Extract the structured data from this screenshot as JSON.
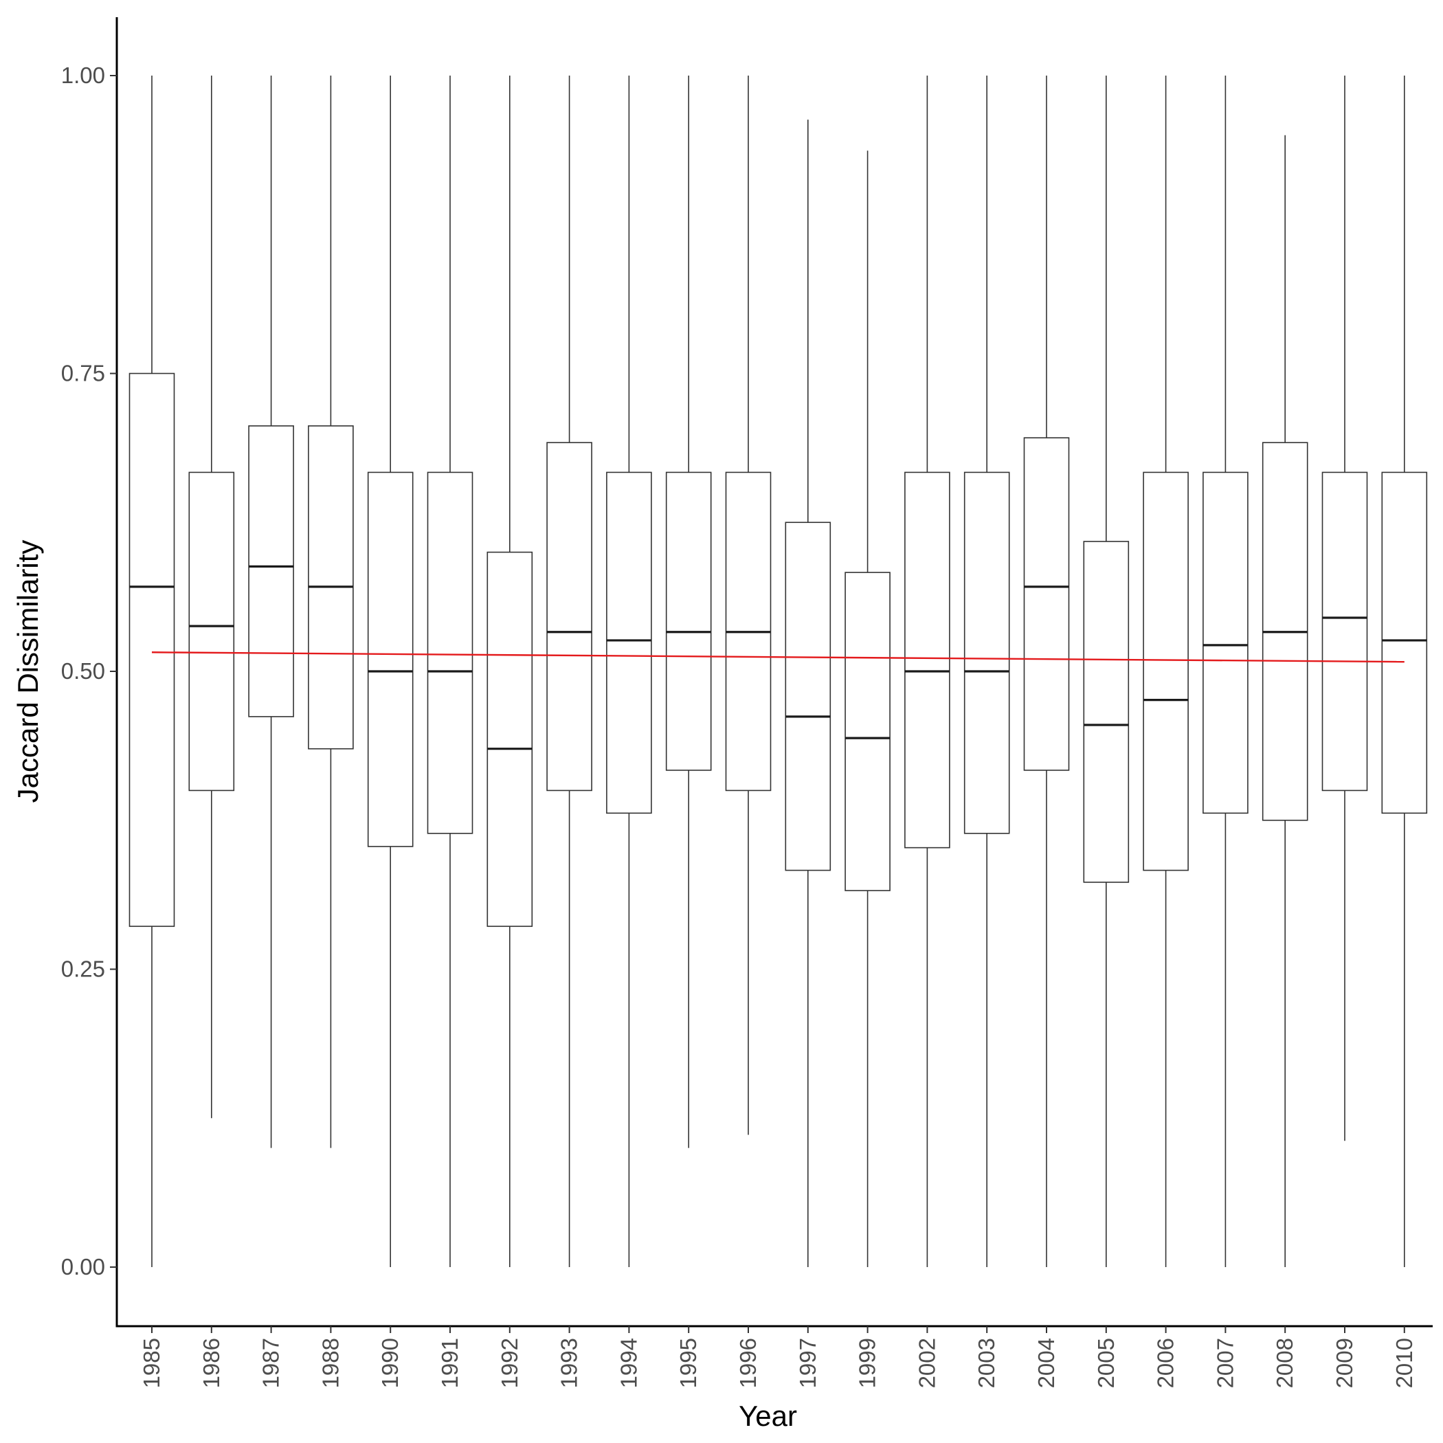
{
  "chart_data": {
    "type": "boxplot",
    "title": "",
    "xlabel": "Year",
    "ylabel": "Jaccard Dissimilarity",
    "ylim": [
      -0.05,
      1.05
    ],
    "yticks": [
      0.0,
      0.25,
      0.5,
      0.75,
      1.0
    ],
    "ytick_labels": [
      "0.00",
      "0.25",
      "0.50",
      "0.75",
      "1.00"
    ],
    "grid": false,
    "categories": [
      "1985",
      "1986",
      "1987",
      "1988",
      "1990",
      "1991",
      "1992",
      "1993",
      "1994",
      "1995",
      "1996",
      "1997",
      "1999",
      "2002",
      "2003",
      "2004",
      "2005",
      "2006",
      "2007",
      "2008",
      "2009",
      "2010"
    ],
    "boxes": [
      {
        "label": "1985",
        "whisker_low": 0.0,
        "q1": 0.286,
        "median": 0.571,
        "q3": 0.75,
        "whisker_high": 1.0
      },
      {
        "label": "1986",
        "whisker_low": 0.125,
        "q1": 0.4,
        "median": 0.538,
        "q3": 0.667,
        "whisker_high": 1.0
      },
      {
        "label": "1987",
        "whisker_low": 0.1,
        "q1": 0.462,
        "median": 0.588,
        "q3": 0.706,
        "whisker_high": 1.0
      },
      {
        "label": "1988",
        "whisker_low": 0.1,
        "q1": 0.435,
        "median": 0.571,
        "q3": 0.706,
        "whisker_high": 1.0
      },
      {
        "label": "1990",
        "whisker_low": 0.0,
        "q1": 0.353,
        "median": 0.5,
        "q3": 0.667,
        "whisker_high": 1.0
      },
      {
        "label": "1991",
        "whisker_low": 0.0,
        "q1": 0.364,
        "median": 0.5,
        "q3": 0.667,
        "whisker_high": 1.0
      },
      {
        "label": "1992",
        "whisker_low": 0.0,
        "q1": 0.286,
        "median": 0.435,
        "q3": 0.6,
        "whisker_high": 1.0
      },
      {
        "label": "1993",
        "whisker_low": 0.0,
        "q1": 0.4,
        "median": 0.533,
        "q3": 0.692,
        "whisker_high": 1.0
      },
      {
        "label": "1994",
        "whisker_low": 0.0,
        "q1": 0.381,
        "median": 0.526,
        "q3": 0.667,
        "whisker_high": 1.0
      },
      {
        "label": "1995",
        "whisker_low": 0.1,
        "q1": 0.417,
        "median": 0.533,
        "q3": 0.667,
        "whisker_high": 1.0
      },
      {
        "label": "1996",
        "whisker_low": 0.111,
        "q1": 0.4,
        "median": 0.533,
        "q3": 0.667,
        "whisker_high": 1.0
      },
      {
        "label": "1997",
        "whisker_low": 0.0,
        "q1": 0.333,
        "median": 0.462,
        "q3": 0.625,
        "whisker_high": 0.963
      },
      {
        "label": "1999",
        "whisker_low": 0.0,
        "q1": 0.316,
        "median": 0.444,
        "q3": 0.583,
        "whisker_high": 0.937
      },
      {
        "label": "2002",
        "whisker_low": 0.0,
        "q1": 0.352,
        "median": 0.5,
        "q3": 0.667,
        "whisker_high": 1.0
      },
      {
        "label": "2003",
        "whisker_low": 0.0,
        "q1": 0.364,
        "median": 0.5,
        "q3": 0.667,
        "whisker_high": 1.0
      },
      {
        "label": "2004",
        "whisker_low": 0.0,
        "q1": 0.417,
        "median": 0.571,
        "q3": 0.696,
        "whisker_high": 1.0
      },
      {
        "label": "2005",
        "whisker_low": 0.0,
        "q1": 0.323,
        "median": 0.455,
        "q3": 0.609,
        "whisker_high": 1.0
      },
      {
        "label": "2006",
        "whisker_low": 0.0,
        "q1": 0.333,
        "median": 0.476,
        "q3": 0.667,
        "whisker_high": 1.0
      },
      {
        "label": "2007",
        "whisker_low": 0.0,
        "q1": 0.381,
        "median": 0.522,
        "q3": 0.667,
        "whisker_high": 1.0
      },
      {
        "label": "2008",
        "whisker_low": 0.0,
        "q1": 0.375,
        "median": 0.533,
        "q3": 0.692,
        "whisker_high": 0.95
      },
      {
        "label": "2009",
        "whisker_low": 0.106,
        "q1": 0.4,
        "median": 0.545,
        "q3": 0.667,
        "whisker_high": 1.0
      },
      {
        "label": "2010",
        "whisker_low": 0.0,
        "q1": 0.381,
        "median": 0.526,
        "q3": 0.667,
        "whisker_high": 1.0
      }
    ],
    "trend_line": {
      "from_category": "1985",
      "to_category": "2010",
      "y_start": 0.516,
      "y_end": 0.508,
      "color": "#e41a1c"
    },
    "colors": {
      "box_stroke": "#333333",
      "axis": "#000000",
      "tick_label": "#4d4d4d",
      "trend": "#e41a1c"
    }
  }
}
